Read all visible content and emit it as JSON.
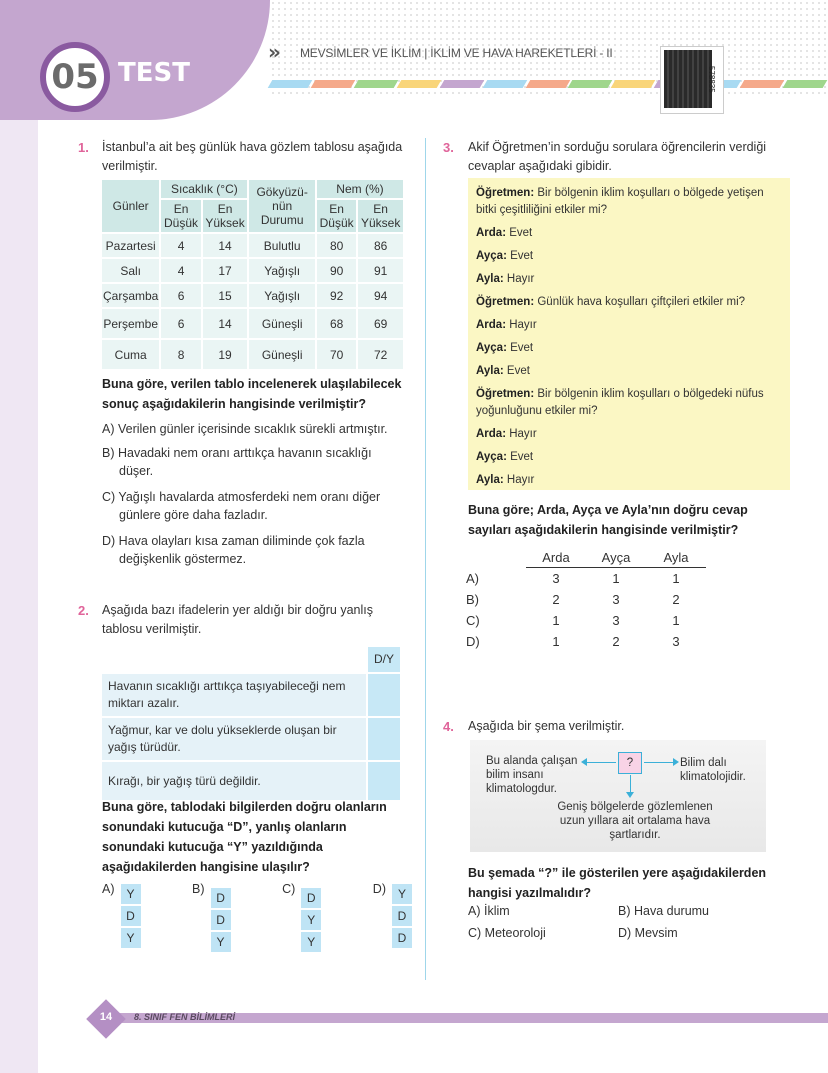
{
  "header": {
    "test_number": "05",
    "test_label": "TEST",
    "topic": "MEVSİMLER VE İKLİM | İKLİM VE HAVA HAREKETLERİ - II",
    "qr_code_number": "578835",
    "stripe_colors": [
      "#a8daf2",
      "#f5a98a",
      "#9fd68c",
      "#f9d57a",
      "#c4a6cf",
      "#a8daf2",
      "#f5a98a",
      "#9fd68c",
      "#f9d57a",
      "#c4a6cf",
      "#a8daf2",
      "#f5a98a",
      "#9fd68c"
    ]
  },
  "q1": {
    "number": "1.",
    "text": "İstanbul’a ait beş günlük hava gözlem tablosu aşağıda verilmiştir.",
    "table": {
      "h_days": "Günler",
      "h_temp": "Sıcaklık (°C)",
      "h_sky": "Gökyüzü-nün Durumu",
      "h_hum": "Nem (%)",
      "h_low": "En Düşük",
      "h_high": "En Yüksek",
      "rows": [
        [
          "Pazartesi",
          "4",
          "14",
          "Bulutlu",
          "80",
          "86"
        ],
        [
          "Salı",
          "4",
          "17",
          "Yağışlı",
          "90",
          "91"
        ],
        [
          "Çarşamba",
          "6",
          "15",
          "Yağışlı",
          "92",
          "94"
        ],
        [
          "Perşembe",
          "6",
          "14",
          "Güneşli",
          "68",
          "69"
        ],
        [
          "Cuma",
          "8",
          "19",
          "Güneşli",
          "70",
          "72"
        ]
      ]
    },
    "question": "Buna göre, verilen tablo incelenerek ulaşılabilecek sonuç aşağıdakilerin hangisinde verilmiştir?",
    "options": [
      "A) Verilen günler içerisinde sıcaklık sürekli artmıştır.",
      "B) Havadaki nem oranı arttıkça havanın sıcaklığı düşer.",
      "C) Yağışlı havalarda atmosferdeki nem oranı diğer günlere göre daha fazladır.",
      "D) Hava olayları kısa zaman diliminde çok fazla değişkenlik göstermez."
    ]
  },
  "q2": {
    "number": "2.",
    "text": "Aşağıda bazı ifadelerin yer aldığı bir doğru yanlış tablosu verilmiştir.",
    "col": "D/Y",
    "rows": [
      "Havanın sıcaklığı arttıkça taşıyabileceği nem miktarı azalır.",
      "Yağmur, kar ve dolu yükseklerde oluşan bir yağış türüdür.",
      "Kırağı, bir yağış türü değildir."
    ],
    "question": "Buna göre, tablodaki bilgilerden doğru olanların sonundaki kutucuğa “D”, yanlış olanların sonundaki kutucuğa “Y” yazıldığında aşağıdakilerden hangisine ulaşılır?",
    "options": [
      {
        "label": "A)",
        "vals": [
          "Y",
          "D",
          "Y"
        ]
      },
      {
        "label": "B)",
        "vals": [
          "D",
          "D",
          "Y"
        ]
      },
      {
        "label": "C)",
        "vals": [
          "D",
          "Y",
          "Y"
        ]
      },
      {
        "label": "D)",
        "vals": [
          "Y",
          "D",
          "D"
        ]
      }
    ]
  },
  "q3": {
    "number": "3.",
    "text": "Akif Öğretmen’in sorduğu sorulara öğrencilerin verdiği cevaplar aşağıdaki gibidir.",
    "dialog": [
      {
        "s": "Öğretmen:",
        "t": " Bir bölgenin iklim koşulları o bölgede yetişen bitki çeşitliliğini etkiler mi?"
      },
      {
        "s": "Arda:",
        "t": " Evet"
      },
      {
        "s": "Ayça:",
        "t": " Evet"
      },
      {
        "s": "Ayla:",
        "t": " Hayır"
      },
      {
        "s": "Öğretmen:",
        "t": " Günlük hava koşulları çiftçileri etkiler mi?"
      },
      {
        "s": "Arda:",
        "t": " Hayır"
      },
      {
        "s": "Ayça:",
        "t": " Evet"
      },
      {
        "s": "Ayla:",
        "t": " Evet"
      },
      {
        "s": "Öğretmen:",
        "t": " Bir bölgenin iklim koşulları o bölgedeki nüfus yoğunluğunu etkiler mi?"
      },
      {
        "s": "Arda:",
        "t": " Hayır"
      },
      {
        "s": "Ayça:",
        "t": " Evet"
      },
      {
        "s": "Ayla:",
        "t": " Hayır"
      }
    ],
    "question": "Buna göre; Arda, Ayça ve Ayla’nın doğru cevap sayıları aşağıdakilerin hangisinde verilmiştir?",
    "headers": [
      "Arda",
      "Ayça",
      "Ayla"
    ],
    "options": [
      [
        "A)",
        "3",
        "1",
        "1"
      ],
      [
        "B)",
        "2",
        "3",
        "2"
      ],
      [
        "C)",
        "1",
        "3",
        "1"
      ],
      [
        "D)",
        "1",
        "2",
        "3"
      ]
    ]
  },
  "q4": {
    "number": "4.",
    "text": "Aşağıda bir şema verilmiştir.",
    "diagram": {
      "center": "?",
      "left": "Bu alanda çalışan bilim insanı klimatologdur.",
      "right": "Bilim dalı klimatolojidir.",
      "bottom": "Geniş bölgelerde gözlemlenen uzun yıllara ait ortalama hava şartlarıdır."
    },
    "question": "Bu şemada “?” ile gösterilen yere aşağıdakilerden hangisi yazılmalıdır?",
    "options": [
      "A) İklim",
      "B) Hava durumu",
      "C) Meteoroloji",
      "D) Mevsim"
    ]
  },
  "footer": {
    "page": "14",
    "book": "8. SINIF FEN BİLİMLERİ"
  }
}
